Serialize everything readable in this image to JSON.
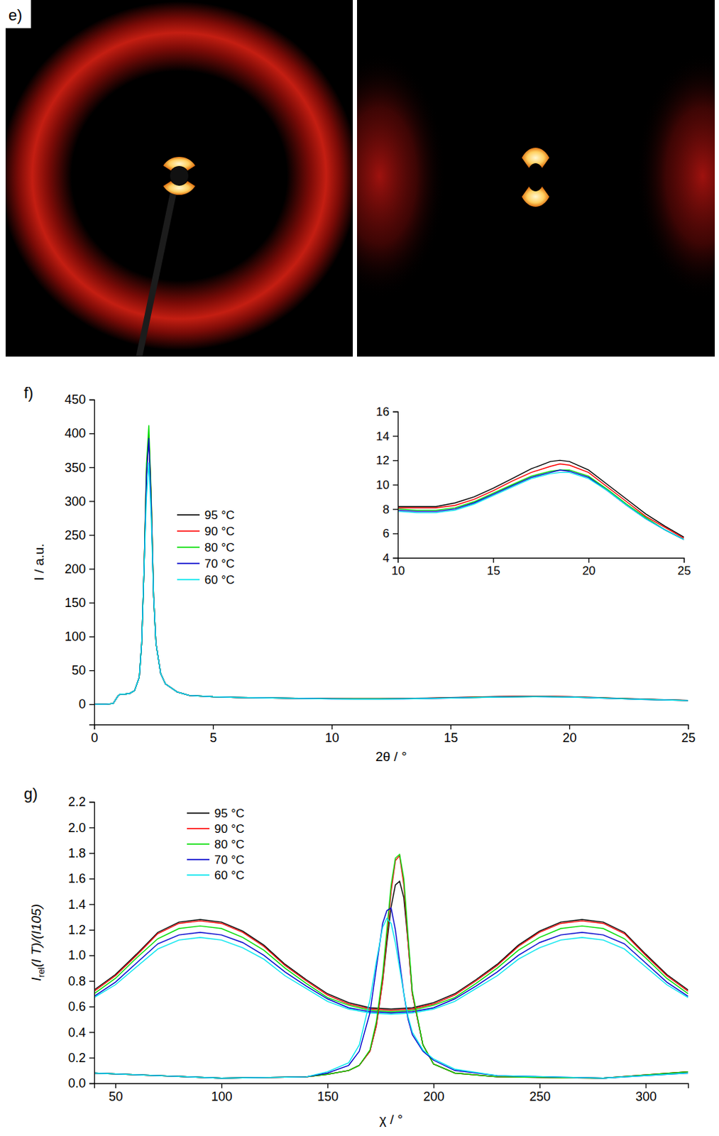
{
  "images": {
    "label": "e)"
  },
  "chart_data": [
    {
      "type": "line",
      "label": "f)",
      "xlabel": "2θ / °",
      "ylabel": "I / a.u.",
      "x": [
        0,
        0.5,
        0.8,
        1.0,
        1.1,
        1.3,
        1.5,
        1.7,
        1.9,
        2.0,
        2.1,
        2.2,
        2.3,
        2.4,
        2.5,
        2.6,
        2.8,
        3.0,
        3.5,
        4,
        5,
        6,
        8,
        10,
        11,
        12,
        13,
        14,
        15,
        16,
        17,
        18,
        18.5,
        19,
        20,
        21,
        22,
        23,
        24,
        25
      ],
      "series": [
        {
          "name": "95 °C",
          "color": "#000000",
          "values": [
            0,
            0,
            1,
            12,
            15,
            15,
            16,
            20,
            40,
            90,
            200,
            340,
            395,
            300,
            160,
            90,
            45,
            30,
            18,
            13,
            11,
            10,
            9,
            8.2,
            8.2,
            8.2,
            8.5,
            9.0,
            9.7,
            10.5,
            11.3,
            11.9,
            12.0,
            11.9,
            11.2,
            10.0,
            8.8,
            7.6,
            6.6,
            5.7
          ]
        },
        {
          "name": "90 °C",
          "color": "#ff0000",
          "values": [
            0,
            0,
            1,
            12,
            15,
            15,
            16,
            20,
            40,
            90,
            200,
            345,
            398,
            305,
            160,
            90,
            45,
            30,
            18,
            13,
            11,
            10,
            9,
            8.1,
            8.1,
            8.1,
            8.3,
            8.8,
            9.5,
            10.3,
            11.0,
            11.5,
            11.7,
            11.6,
            11.0,
            9.8,
            8.6,
            7.4,
            6.5,
            5.6
          ]
        },
        {
          "name": "80 °C",
          "color": "#00dd00",
          "values": [
            0,
            0,
            1,
            12,
            15,
            15,
            16,
            20,
            40,
            90,
            200,
            355,
            412,
            310,
            160,
            90,
            45,
            30,
            18,
            13,
            11,
            10,
            9,
            8.0,
            7.9,
            7.9,
            8.1,
            8.6,
            9.3,
            10.0,
            10.7,
            11.1,
            11.2,
            11.2,
            10.7,
            9.6,
            8.4,
            7.3,
            6.3,
            5.5
          ]
        },
        {
          "name": "70 °C",
          "color": "#0000cc",
          "values": [
            0,
            0,
            1,
            12,
            15,
            15,
            16,
            20,
            40,
            90,
            200,
            335,
            393,
            295,
            160,
            90,
            45,
            30,
            18,
            13,
            11,
            10,
            9,
            7.9,
            7.8,
            7.8,
            8.0,
            8.5,
            9.2,
            9.9,
            10.6,
            11.0,
            11.2,
            11.1,
            10.6,
            9.5,
            8.3,
            7.2,
            6.3,
            5.5
          ]
        },
        {
          "name": "60 °C",
          "color": "#00e5ee",
          "values": [
            0,
            0,
            1,
            12,
            15,
            15,
            16,
            20,
            40,
            90,
            200,
            305,
            357,
            275,
            160,
            90,
            45,
            30,
            18,
            13,
            11,
            10,
            9,
            7.8,
            7.7,
            7.7,
            7.9,
            8.4,
            9.1,
            9.8,
            10.5,
            10.9,
            11.0,
            11.0,
            10.5,
            9.5,
            8.3,
            7.2,
            6.3,
            5.5
          ]
        }
      ],
      "xlim": [
        0,
        25
      ],
      "ylim": [
        -30,
        450
      ],
      "xticks": [
        0,
        5,
        10,
        15,
        20,
        25
      ],
      "yticks": [
        0,
        50,
        100,
        150,
        200,
        250,
        300,
        350,
        400,
        450
      ],
      "legend": "upper left",
      "inset": {
        "xlim": [
          10,
          25
        ],
        "ylim": [
          4,
          16
        ],
        "xticks": [
          10,
          15,
          20,
          25
        ],
        "yticks": [
          4,
          6,
          8,
          10,
          12,
          14,
          16
        ]
      }
    },
    {
      "type": "line",
      "label": "g)",
      "xlabel": "χ / °",
      "ylabel": [
        "I",
        "rel",
        "(I T)/(I105)"
      ],
      "x": [
        40,
        50,
        60,
        70,
        80,
        90,
        100,
        110,
        120,
        130,
        140,
        150,
        160,
        170,
        180,
        190,
        200,
        210,
        220,
        230,
        240,
        250,
        260,
        270,
        280,
        290,
        300,
        310,
        320
      ],
      "sharp_x": [
        40,
        100,
        140,
        150,
        160,
        165,
        170,
        173,
        176,
        178,
        180,
        182,
        184,
        186,
        188,
        190,
        195,
        200,
        210,
        230,
        280,
        320
      ],
      "series": [
        {
          "name": "95 °C",
          "color": "#000000",
          "values": [
            0.73,
            0.85,
            1.01,
            1.18,
            1.26,
            1.28,
            1.26,
            1.19,
            1.08,
            0.93,
            0.81,
            0.7,
            0.63,
            0.59,
            0.58,
            0.59,
            0.63,
            0.7,
            0.81,
            0.93,
            1.08,
            1.19,
            1.26,
            1.28,
            1.26,
            1.18,
            1.01,
            0.85,
            0.73
          ],
          "sharp_values": [
            0.08,
            0.04,
            0.05,
            0.07,
            0.1,
            0.14,
            0.25,
            0.45,
            0.8,
            1.1,
            1.38,
            1.55,
            1.58,
            1.45,
            1.1,
            0.7,
            0.3,
            0.15,
            0.08,
            0.05,
            0.04,
            0.09
          ]
        },
        {
          "name": "90 °C",
          "color": "#ff0000",
          "values": [
            0.72,
            0.84,
            1.0,
            1.17,
            1.25,
            1.27,
            1.25,
            1.18,
            1.07,
            0.92,
            0.8,
            0.69,
            0.62,
            0.58,
            0.57,
            0.58,
            0.62,
            0.69,
            0.8,
            0.92,
            1.07,
            1.18,
            1.25,
            1.27,
            1.25,
            1.17,
            1.0,
            0.84,
            0.72
          ],
          "sharp_values": [
            0.08,
            0.04,
            0.05,
            0.07,
            0.1,
            0.14,
            0.25,
            0.45,
            0.8,
            1.15,
            1.5,
            1.74,
            1.78,
            1.55,
            1.1,
            0.7,
            0.3,
            0.15,
            0.08,
            0.05,
            0.04,
            0.09
          ]
        },
        {
          "name": "80 °C",
          "color": "#00dd00",
          "values": [
            0.7,
            0.82,
            0.98,
            1.13,
            1.21,
            1.23,
            1.21,
            1.14,
            1.04,
            0.9,
            0.78,
            0.67,
            0.61,
            0.57,
            0.56,
            0.57,
            0.61,
            0.67,
            0.78,
            0.9,
            1.04,
            1.14,
            1.21,
            1.23,
            1.21,
            1.13,
            0.98,
            0.82,
            0.7
          ],
          "sharp_values": [
            0.08,
            0.04,
            0.05,
            0.07,
            0.1,
            0.14,
            0.26,
            0.48,
            0.85,
            1.2,
            1.55,
            1.76,
            1.79,
            1.6,
            1.15,
            0.72,
            0.3,
            0.15,
            0.08,
            0.05,
            0.04,
            0.09
          ]
        },
        {
          "name": "70 °C",
          "color": "#0000cc",
          "values": [
            0.68,
            0.79,
            0.94,
            1.09,
            1.16,
            1.18,
            1.16,
            1.1,
            1.0,
            0.87,
            0.76,
            0.66,
            0.59,
            0.56,
            0.55,
            0.56,
            0.59,
            0.66,
            0.76,
            0.87,
            1.0,
            1.1,
            1.16,
            1.18,
            1.16,
            1.09,
            0.94,
            0.79,
            0.68
          ],
          "sharp_values": [
            0.08,
            0.04,
            0.05,
            0.08,
            0.14,
            0.25,
            0.55,
            0.9,
            1.25,
            1.35,
            1.37,
            1.2,
            0.95,
            0.7,
            0.5,
            0.38,
            0.25,
            0.18,
            0.1,
            0.06,
            0.04,
            0.08
          ]
        },
        {
          "name": "60 °C",
          "color": "#00e5ee",
          "values": [
            0.67,
            0.77,
            0.91,
            1.05,
            1.12,
            1.14,
            1.12,
            1.06,
            0.97,
            0.84,
            0.74,
            0.64,
            0.58,
            0.55,
            0.54,
            0.55,
            0.58,
            0.64,
            0.74,
            0.84,
            0.97,
            1.06,
            1.12,
            1.14,
            1.12,
            1.05,
            0.91,
            0.77,
            0.67
          ],
          "sharp_values": [
            0.08,
            0.04,
            0.05,
            0.09,
            0.16,
            0.3,
            0.65,
            0.95,
            1.22,
            1.29,
            1.25,
            1.1,
            0.9,
            0.7,
            0.52,
            0.4,
            0.26,
            0.19,
            0.11,
            0.06,
            0.04,
            0.08
          ]
        }
      ],
      "xlim": [
        40,
        320
      ],
      "ylim": [
        0,
        2.2
      ],
      "xticks": [
        50,
        100,
        150,
        200,
        250,
        300
      ],
      "yticks": [
        {
          "value": 0,
          "label": "0.0"
        },
        0.2,
        0.4,
        0.6,
        0.8,
        {
          "value": 1,
          "label": "1.0"
        },
        1.2,
        1.4,
        1.6,
        1.8,
        {
          "value": 2,
          "label": "2.0"
        },
        2.2
      ],
      "legend": "upper left"
    }
  ]
}
